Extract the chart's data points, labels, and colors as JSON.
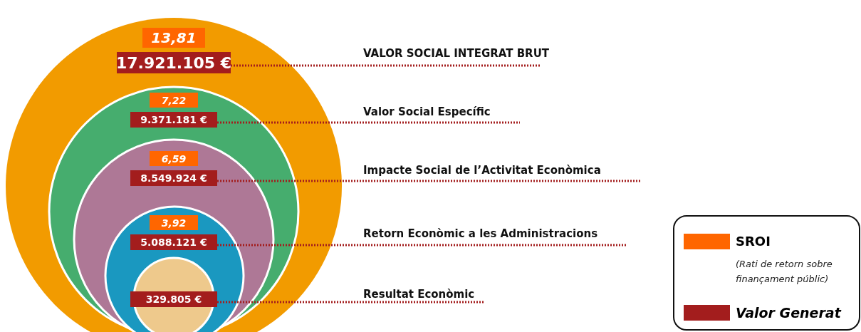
{
  "chart_data": {
    "type": "other",
    "categories": [
      "VALOR SOCIAL INTEGRAT BRUT",
      "Valor Social Específic",
      "Impacte Social de l’Activitat Econòmica",
      "Retorn Econòmic a les Administracions",
      "Resultat Econòmic"
    ],
    "colors": [
      "#f29b00",
      "#46ad6e",
      "#ae7896",
      "#1a98c0",
      "#eec98c"
    ],
    "series": [
      {
        "name": "SROI",
        "color": "#ff6600",
        "values": [
          13.81,
          7.22,
          6.59,
          3.92,
          null
        ],
        "value_labels": [
          "13,81",
          "7,22",
          "6,59",
          "3,92",
          null
        ]
      },
      {
        "name": "Valor Generat",
        "color": "#a31d1d",
        "values": [
          17921105,
          9371181,
          8549924,
          5088121,
          329805
        ],
        "value_labels": [
          "17.921.105 €",
          "9.371.181 €",
          "8.549.924 €",
          "5.088.121 €",
          "329.805 €"
        ]
      }
    ],
    "annotations": [
      "(Rati de retorn sobre finançament públic)"
    ],
    "legend": "bottom right"
  }
}
